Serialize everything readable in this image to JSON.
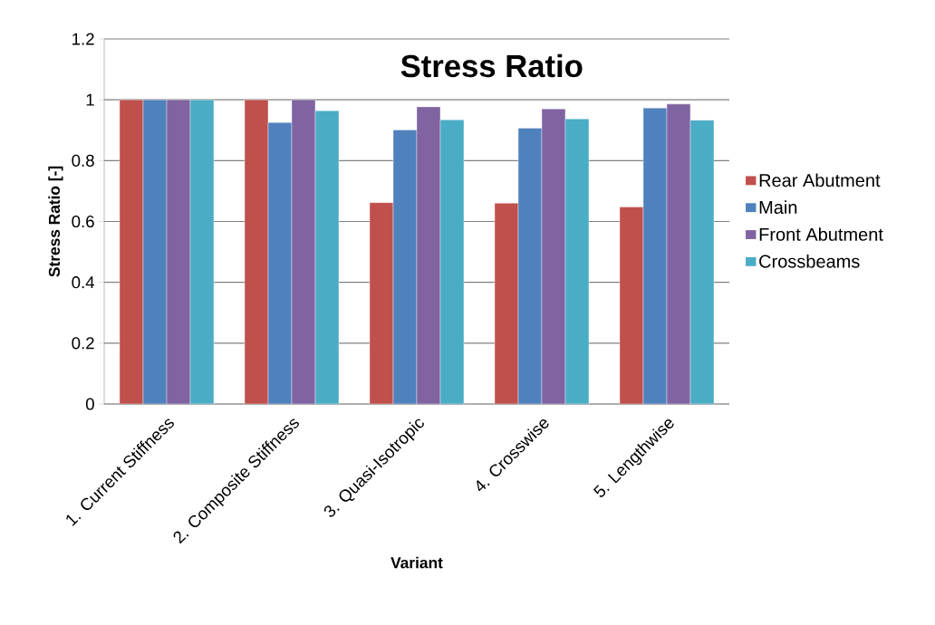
{
  "chart_data": {
    "type": "bar",
    "title": "Stress Ratio",
    "xlabel": "Variant",
    "ylabel": "Stress Ratio [-]",
    "categories": [
      "1. Current Stiffness",
      "2. Composite Stiffness",
      "3. Quasi-Isotropic",
      "4. Crosswise",
      "5. Lengthwise"
    ],
    "series": [
      {
        "name": "Rear Abutment",
        "color": "#c0504d",
        "values": [
          1,
          1,
          0.662,
          0.66,
          0.648
        ]
      },
      {
        "name": "Main",
        "color": "#4f81bd",
        "values": [
          1,
          0.925,
          0.901,
          0.907,
          0.973
        ]
      },
      {
        "name": "Front Abutment",
        "color": "#8064a2",
        "values": [
          1,
          1,
          0.977,
          0.97,
          0.986
        ]
      },
      {
        "name": "Crossbeams",
        "color": "#4bacc6",
        "values": [
          1,
          0.964,
          0.934,
          0.937,
          0.933
        ]
      }
    ],
    "ylim": [
      0,
      1.2
    ],
    "yticks": [
      0,
      0.2,
      0.4,
      0.6,
      0.8,
      1,
      1.2
    ],
    "grid": "y",
    "legend": "right"
  }
}
